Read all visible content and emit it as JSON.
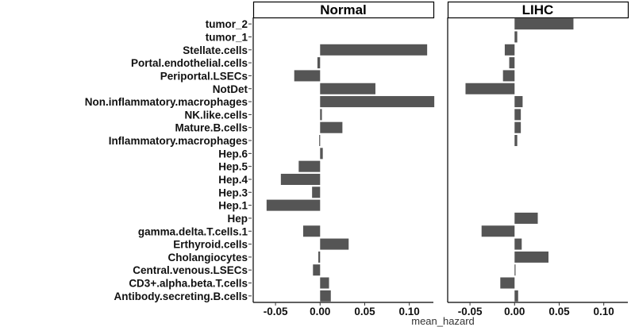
{
  "chart_data": {
    "type": "bar",
    "orientation": "horizontal",
    "facets": [
      "Normal",
      "LIHC"
    ],
    "xlabel": "mean_hazard",
    "ylabel": "",
    "xlim": [
      -0.075,
      0.135
    ],
    "xticks": [
      -0.05,
      0.0,
      0.05,
      0.1
    ],
    "xtick_labels": [
      "-0.05",
      "0.00",
      "0.05",
      "0.10"
    ],
    "bar_color": "#555555",
    "grid": false,
    "categories": [
      "tumor_2",
      "tumor_1",
      "Stellate.cells",
      "Portal.endothelial.cells",
      "Periportal.LSECs",
      "NotDet",
      "Non.inflammatory.macrophages",
      "NK.like.cells",
      "Mature.B.cells",
      "Inflammatory.macrophages",
      "Hep.6",
      "Hep.5",
      "Hep.4",
      "Hep.3",
      "Hep.1",
      "Hep",
      "gamma.delta.T.cells.1",
      "Erthyroid.cells",
      "Cholangiocytes",
      "Central.venous.LSECs",
      "CD3+.alpha.beta.T.cells",
      "Antibody.secreting.B.cells"
    ],
    "series": [
      {
        "name": "Normal",
        "values": [
          null,
          null,
          0.12,
          -0.003,
          -0.029,
          0.062,
          0.128,
          0.002,
          0.025,
          -0.001,
          0.003,
          -0.024,
          -0.044,
          -0.009,
          -0.06,
          null,
          -0.019,
          0.032,
          -0.002,
          -0.008,
          0.01,
          0.012
        ]
      },
      {
        "name": "LIHC",
        "values": [
          0.066,
          0.003,
          -0.011,
          -0.006,
          -0.013,
          -0.055,
          0.009,
          0.007,
          0.007,
          0.003,
          null,
          null,
          null,
          null,
          null,
          0.026,
          -0.037,
          0.008,
          0.038,
          0.0005,
          -0.016,
          0.004
        ]
      }
    ]
  }
}
